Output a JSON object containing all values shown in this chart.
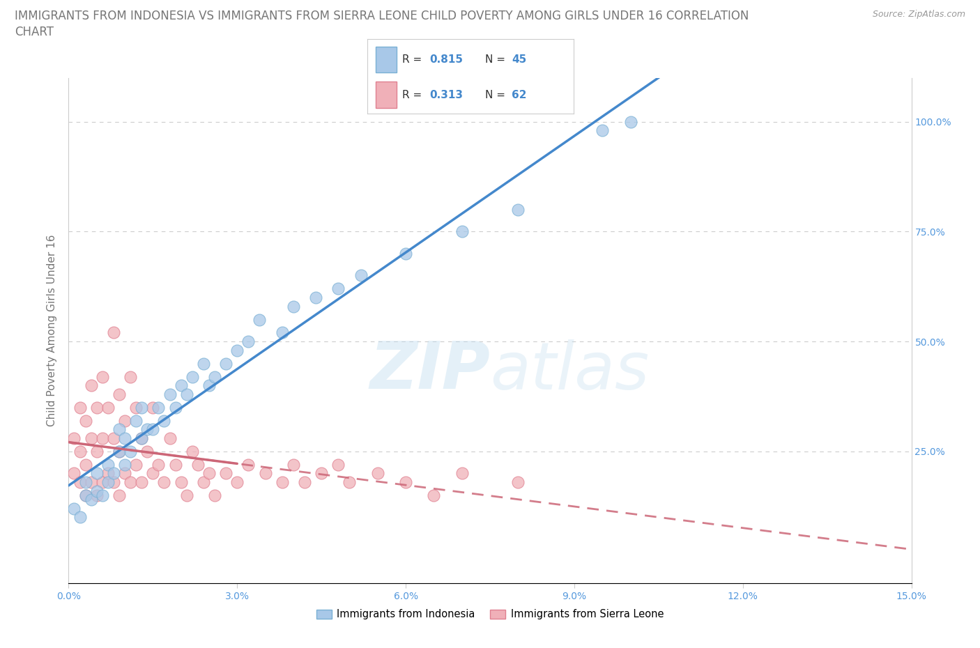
{
  "title_line1": "IMMIGRANTS FROM INDONESIA VS IMMIGRANTS FROM SIERRA LEONE CHILD POVERTY AMONG GIRLS UNDER 16 CORRELATION",
  "title_line2": "CHART",
  "source": "Source: ZipAtlas.com",
  "ylabel": "Child Poverty Among Girls Under 16",
  "watermark": "ZIPatlas",
  "indonesia": {
    "label": "Immigrants from Indonesia",
    "R": 0.815,
    "N": 45,
    "color": "#a8c8e8",
    "edge_color": "#7ab0d4",
    "line_color": "#4488cc",
    "x": [
      0.001,
      0.002,
      0.003,
      0.003,
      0.004,
      0.005,
      0.005,
      0.006,
      0.007,
      0.007,
      0.008,
      0.009,
      0.009,
      0.01,
      0.01,
      0.011,
      0.012,
      0.013,
      0.013,
      0.014,
      0.015,
      0.016,
      0.017,
      0.018,
      0.019,
      0.02,
      0.021,
      0.022,
      0.024,
      0.025,
      0.026,
      0.028,
      0.03,
      0.032,
      0.034,
      0.038,
      0.04,
      0.044,
      0.048,
      0.052,
      0.06,
      0.07,
      0.08,
      0.095,
      0.1
    ],
    "y": [
      0.12,
      0.1,
      0.15,
      0.18,
      0.14,
      0.16,
      0.2,
      0.15,
      0.22,
      0.18,
      0.2,
      0.25,
      0.3,
      0.22,
      0.28,
      0.25,
      0.32,
      0.28,
      0.35,
      0.3,
      0.3,
      0.35,
      0.32,
      0.38,
      0.35,
      0.4,
      0.38,
      0.42,
      0.45,
      0.4,
      0.42,
      0.45,
      0.48,
      0.5,
      0.55,
      0.52,
      0.58,
      0.6,
      0.62,
      0.65,
      0.7,
      0.75,
      0.8,
      0.98,
      1.0
    ]
  },
  "sierraleone": {
    "label": "Immigrants from Sierra Leone",
    "R": 0.313,
    "N": 62,
    "color": "#f0b0b8",
    "edge_color": "#e08090",
    "line_color": "#cc6677",
    "x": [
      0.001,
      0.001,
      0.002,
      0.002,
      0.002,
      0.003,
      0.003,
      0.003,
      0.004,
      0.004,
      0.004,
      0.005,
      0.005,
      0.005,
      0.006,
      0.006,
      0.006,
      0.007,
      0.007,
      0.008,
      0.008,
      0.008,
      0.009,
      0.009,
      0.009,
      0.01,
      0.01,
      0.011,
      0.011,
      0.012,
      0.012,
      0.013,
      0.013,
      0.014,
      0.015,
      0.015,
      0.016,
      0.017,
      0.018,
      0.019,
      0.02,
      0.021,
      0.022,
      0.023,
      0.024,
      0.025,
      0.026,
      0.028,
      0.03,
      0.032,
      0.035,
      0.038,
      0.04,
      0.042,
      0.045,
      0.048,
      0.05,
      0.055,
      0.06,
      0.065,
      0.07,
      0.08
    ],
    "y": [
      0.2,
      0.28,
      0.18,
      0.25,
      0.35,
      0.15,
      0.22,
      0.32,
      0.18,
      0.28,
      0.4,
      0.15,
      0.25,
      0.35,
      0.18,
      0.28,
      0.42,
      0.2,
      0.35,
      0.18,
      0.28,
      0.52,
      0.15,
      0.25,
      0.38,
      0.2,
      0.32,
      0.18,
      0.42,
      0.22,
      0.35,
      0.18,
      0.28,
      0.25,
      0.2,
      0.35,
      0.22,
      0.18,
      0.28,
      0.22,
      0.18,
      0.15,
      0.25,
      0.22,
      0.18,
      0.2,
      0.15,
      0.2,
      0.18,
      0.22,
      0.2,
      0.18,
      0.22,
      0.18,
      0.2,
      0.22,
      0.18,
      0.2,
      0.18,
      0.15,
      0.2,
      0.18
    ]
  },
  "xlim": [
    0.0,
    0.15
  ],
  "ylim": [
    -0.05,
    1.1
  ],
  "xticks": [
    0.0,
    0.03,
    0.06,
    0.09,
    0.12,
    0.15
  ],
  "xtick_labels": [
    "0.0%",
    "3.0%",
    "6.0%",
    "9.0%",
    "12.0%",
    "15.0%"
  ],
  "yticks": [
    0.0,
    0.25,
    0.5,
    0.75,
    1.0
  ],
  "ytick_labels_right": [
    "",
    "25.0%",
    "50.0%",
    "75.0%",
    "100.0%"
  ],
  "grid_color": "#cccccc",
  "background_color": "#ffffff",
  "title_fontsize": 12,
  "axis_fontsize": 11,
  "tick_fontsize": 10,
  "tick_color": "#5599dd",
  "legend_color": "#4488cc"
}
